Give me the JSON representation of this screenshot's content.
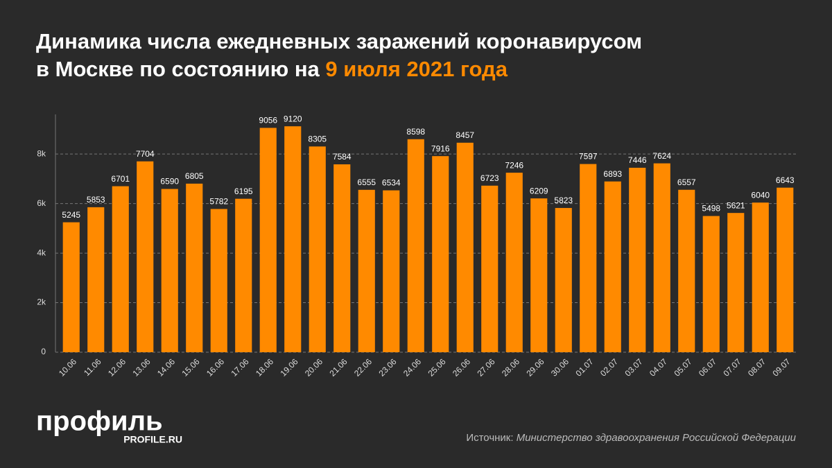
{
  "chart_data": {
    "type": "bar",
    "title": "Динамика числа ежедневных заражений коронавирусом",
    "title_line2": "в Москве по состоянию на",
    "title_date": "9 июля 2021 года",
    "categories": [
      "10.06",
      "11.06",
      "12.06",
      "13.06",
      "14.06",
      "15.06",
      "16.06",
      "17.06",
      "18.06",
      "19.06",
      "20.06",
      "21.06",
      "22.06",
      "23.06",
      "24.06",
      "25.06",
      "26.06",
      "27.06",
      "28.06",
      "29.06",
      "30.06",
      "01.07",
      "02.07",
      "03.07",
      "04.07",
      "05.07",
      "06.07",
      "07.07",
      "08.07",
      "09.07"
    ],
    "values": [
      5245,
      5853,
      6701,
      7704,
      6590,
      6805,
      5782,
      6195,
      9056,
      9120,
      8305,
      7584,
      6555,
      6534,
      8598,
      7916,
      8457,
      6723,
      7246,
      6209,
      5823,
      7597,
      6893,
      7446,
      7624,
      6557,
      5498,
      5621,
      6040,
      6643
    ],
    "color": "#ff8a00",
    "ylim": [
      0,
      9600
    ],
    "yticks": [
      0,
      {
        "value": 2000,
        "label": "2k"
      },
      {
        "value": 4000,
        "label": "4k"
      },
      {
        "value": 6000,
        "label": "6k"
      },
      {
        "value": 8000,
        "label": "8k"
      }
    ],
    "grid": true,
    "logo": "профиль",
    "logo_url": "PROFILE.RU",
    "source_label": "Источник:",
    "source": "Министерство здравоохранения Российской Федерации"
  }
}
